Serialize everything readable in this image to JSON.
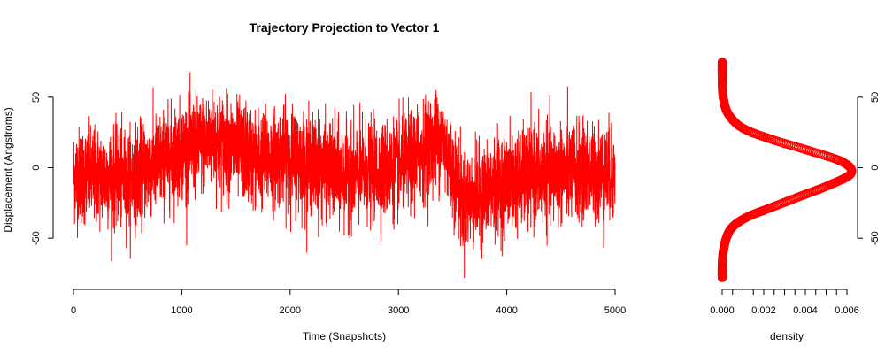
{
  "chart_data": [
    {
      "type": "line",
      "title": "Trajectory Projection to Vector 1",
      "xlabel": "Time (Snapshots)",
      "ylabel": "Displacement (Angstroms)",
      "xlim": [
        0,
        5000
      ],
      "ylim": [
        -80,
        75
      ],
      "xticks": [
        "0",
        "1000",
        "2000",
        "3000",
        "4000",
        "5000"
      ],
      "yticks": [
        "-50",
        "0",
        "50"
      ],
      "grid": false,
      "color": "#ff0000",
      "n_points": 5000,
      "trend": [
        {
          "x": 0,
          "y": -5
        },
        {
          "x": 500,
          "y": -8
        },
        {
          "x": 1000,
          "y": 12
        },
        {
          "x": 1300,
          "y": 20
        },
        {
          "x": 1700,
          "y": 6
        },
        {
          "x": 2000,
          "y": 8
        },
        {
          "x": 2500,
          "y": -6
        },
        {
          "x": 3000,
          "y": 0
        },
        {
          "x": 3400,
          "y": 22
        },
        {
          "x": 3600,
          "y": -25
        },
        {
          "x": 4000,
          "y": -10
        },
        {
          "x": 4500,
          "y": -3
        },
        {
          "x": 5000,
          "y": -5
        }
      ],
      "noise_sd": 17,
      "y_min": -78,
      "y_max": 75
    },
    {
      "type": "line",
      "title": "",
      "xlabel": "density",
      "ylabel": "",
      "xlim": [
        0,
        0.006
      ],
      "ylim": [
        -80,
        75
      ],
      "xticks": [
        "0.000",
        "0.002",
        "0.004",
        "0.006"
      ],
      "yticks": [
        "-50",
        "0",
        "50"
      ],
      "yaxis_side": "right",
      "grid": false,
      "color": "#ff0000",
      "x": [
        0.0,
        0.0,
        5e-05,
        0.0002,
        0.0005,
        0.0012,
        0.0024,
        0.0038,
        0.0052,
        0.0062,
        0.0058,
        0.0042,
        0.0024,
        0.001,
        0.0003,
        5e-05,
        0.0,
        0.0
      ],
      "y": [
        -78,
        -70,
        -60,
        -50,
        -42,
        -35,
        -28,
        -20,
        -12,
        -4,
        4,
        12,
        20,
        28,
        38,
        50,
        65,
        75
      ]
    }
  ]
}
